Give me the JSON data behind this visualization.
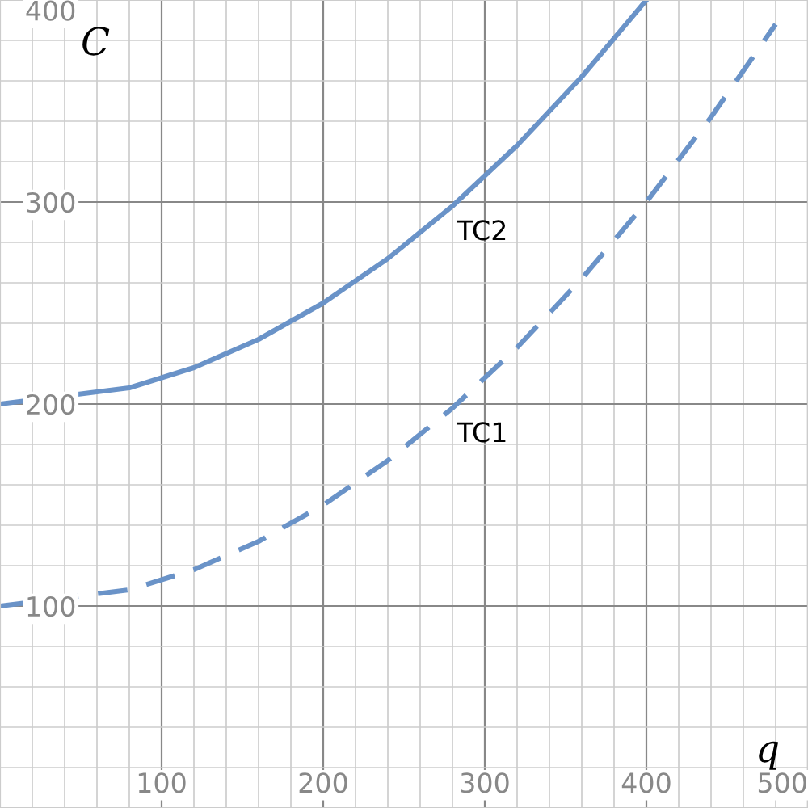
{
  "chart_data": {
    "type": "line",
    "xlabel": "q",
    "ylabel": "C",
    "xlim": [
      0,
      500
    ],
    "ylim": [
      0,
      400
    ],
    "xticks": [
      {
        "value": 20,
        "label": null
      },
      {
        "value": 40,
        "label": null
      },
      {
        "value": 60,
        "label": null
      },
      {
        "value": 80,
        "label": null
      },
      100,
      {
        "value": 120,
        "label": null
      },
      {
        "value": 140,
        "label": null
      },
      {
        "value": 160,
        "label": null
      },
      {
        "value": 180,
        "label": null
      },
      200,
      {
        "value": 220,
        "label": null
      },
      {
        "value": 240,
        "label": null
      },
      {
        "value": 260,
        "label": null
      },
      {
        "value": 280,
        "label": null
      },
      300,
      {
        "value": 320,
        "label": null
      },
      {
        "value": 340,
        "label": null
      },
      {
        "value": 360,
        "label": null
      },
      {
        "value": 380,
        "label": null
      },
      400,
      {
        "value": 420,
        "label": null
      },
      {
        "value": 440,
        "label": null
      },
      {
        "value": 460,
        "label": null
      },
      {
        "value": 480,
        "label": null
      },
      500
    ],
    "yticks": [
      {
        "value": 20,
        "label": null
      },
      {
        "value": 40,
        "label": null
      },
      {
        "value": 60,
        "label": null
      },
      {
        "value": 80,
        "label": null
      },
      100,
      {
        "value": 120,
        "label": null
      },
      {
        "value": 140,
        "label": null
      },
      {
        "value": 160,
        "label": null
      },
      {
        "value": 180,
        "label": null
      },
      200,
      {
        "value": 220,
        "label": null
      },
      {
        "value": 240,
        "label": null
      },
      {
        "value": 260,
        "label": null
      },
      {
        "value": 280,
        "label": null
      },
      300,
      {
        "value": 320,
        "label": null
      },
      {
        "value": 340,
        "label": null
      },
      {
        "value": 360,
        "label": null
      },
      {
        "value": 380,
        "label": null
      },
      400
    ],
    "grid": true,
    "legend": false,
    "marker": "none",
    "series": [
      {
        "color": "#6a93c8",
        "line_style": "solid",
        "x": [
          0,
          80,
          120,
          160,
          200,
          240,
          280,
          320,
          360,
          400
        ],
        "values": [
          200,
          208,
          218,
          232,
          250,
          272,
          298,
          328,
          362,
          400
        ]
      },
      {
        "color": "#6a93c8",
        "line_style": "dashed",
        "x": [
          0,
          80,
          120,
          160,
          200,
          240,
          280,
          320,
          360,
          400,
          440,
          480
        ],
        "values": [
          100,
          108,
          118,
          132,
          150,
          172,
          198,
          228,
          262,
          300,
          342,
          388
        ]
      }
    ],
    "annotations": [
      "TC2",
      "TC1"
    ]
  }
}
